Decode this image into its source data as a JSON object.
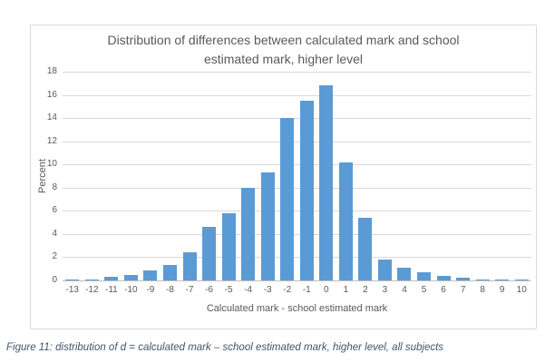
{
  "figure": {
    "caption": "Figure 11: distribution of d = calculated mark – school estimated mark, higher level, all subjects"
  },
  "chart_data": {
    "type": "bar",
    "title": "Distribution of differences between calculated mark and school estimated mark, higher level",
    "xlabel": "Calculated mark - school estimated mark",
    "ylabel": "Percent",
    "categories": [
      "-13",
      "-12",
      "-11",
      "-10",
      "-9",
      "-8",
      "-7",
      "-6",
      "-5",
      "-4",
      "-3",
      "-2",
      "-1",
      "0",
      "1",
      "2",
      "3",
      "4",
      "5",
      "6",
      "7",
      "8",
      "9",
      "10"
    ],
    "values": [
      0.1,
      0.1,
      0.3,
      0.45,
      0.9,
      1.3,
      2.4,
      4.6,
      5.8,
      8.0,
      9.3,
      14.0,
      15.5,
      16.8,
      10.2,
      5.4,
      1.8,
      1.1,
      0.7,
      0.4,
      0.2,
      0.1,
      0.1,
      0.1
    ],
    "ylim": [
      0,
      18
    ],
    "ytick_step": 2,
    "grid": true,
    "legend": "none",
    "bar_color": "#5b9bd5",
    "gridline_color": "#d9d9d9",
    "axis_text_color": "#595959",
    "caption_color": "#44546a"
  }
}
